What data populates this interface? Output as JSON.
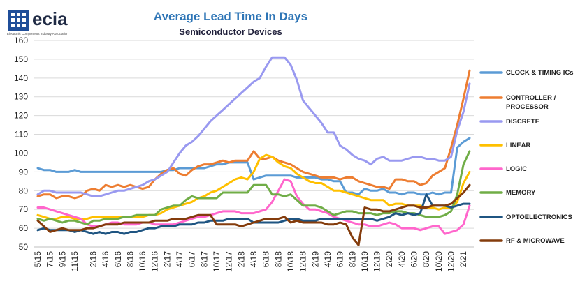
{
  "logo": {
    "text": "ecia",
    "tagline": "Electronic Components Industry Association",
    "icon": "ecia-logo-icon"
  },
  "chart_data": {
    "type": "line",
    "title": "Average Lead Time In Days",
    "subtitle": "Semiconductor Devices",
    "xlabel": "",
    "ylabel": "",
    "ylim": [
      50,
      160
    ],
    "yticks": [
      50,
      60,
      70,
      80,
      90,
      100,
      110,
      120,
      130,
      140,
      150,
      160
    ],
    "grid": true,
    "legend": "right",
    "x": [
      "5\\15",
      "6\\15",
      "7\\15",
      "8\\15",
      "9\\15",
      "10\\15",
      "11\\15",
      "12\\15",
      "1\\16",
      "2\\16",
      "3\\16",
      "4\\16",
      "5\\16",
      "6\\16",
      "7\\16",
      "8\\16",
      "9\\16",
      "10\\16",
      "11\\16",
      "12\\16",
      "1\\17",
      "2\\17",
      "3\\17",
      "4\\17",
      "5\\17",
      "6\\17",
      "7\\17",
      "8\\17",
      "9\\17",
      "10\\17",
      "11\\17",
      "12\\17",
      "1\\18",
      "2\\18",
      "3\\18",
      "4\\18",
      "5\\18",
      "6\\18",
      "7\\18",
      "8\\18",
      "9\\18",
      "10\\18",
      "11\\18",
      "12\\18",
      "1\\19",
      "2\\19",
      "3\\19",
      "4\\19",
      "5\\19",
      "6\\19",
      "7\\19",
      "8\\19",
      "9\\19",
      "10\\19",
      "11\\19",
      "12\\19",
      "1\\20",
      "2\\20",
      "3\\20",
      "4\\20",
      "5\\20",
      "6\\20",
      "7\\20",
      "8\\20",
      "9\\20",
      "10\\20",
      "11\\20",
      "12\\20",
      "1\\21",
      "2\\21",
      "3\\21"
    ],
    "xticks": [
      "5\\15",
      "7\\15",
      "9\\15",
      "11\\15",
      "2\\16",
      "4\\16",
      "6\\16",
      "8\\16",
      "10\\16",
      "12\\16",
      "2\\17",
      "4\\17",
      "6\\17",
      "8\\17",
      "10\\17",
      "12\\17",
      "2\\18",
      "4\\18",
      "6\\18",
      "8\\18",
      "10\\18",
      "12\\18",
      "2\\19",
      "4\\19",
      "6\\19",
      "8\\19",
      "10\\19",
      "12\\19",
      "2\\20",
      "4\\20",
      "6\\20",
      "8\\20",
      "10\\20",
      "12\\20",
      "2\\21"
    ],
    "series": [
      {
        "name": "CLOCK & TIMING ICs",
        "color": "#5b9bd5",
        "values": [
          92,
          91,
          91,
          90,
          90,
          90,
          91,
          90,
          90,
          90,
          90,
          90,
          90,
          90,
          90,
          90,
          90,
          90,
          90,
          90,
          90,
          91,
          91,
          92,
          92,
          92,
          92,
          92,
          93,
          94,
          94,
          95,
          95,
          95,
          95,
          86,
          87,
          88,
          88,
          88,
          88,
          88,
          87,
          87,
          87,
          87,
          86,
          86,
          85,
          85,
          79,
          79,
          78,
          81,
          80,
          80,
          81,
          79,
          79,
          78,
          79,
          79,
          78,
          78,
          79,
          78,
          79,
          79,
          103,
          106,
          108
        ]
      },
      {
        "name": "CONTROLLER / PROCESSOR",
        "color": "#ed7d31",
        "values": [
          77,
          78,
          78,
          76,
          77,
          77,
          76,
          77,
          80,
          81,
          80,
          83,
          82,
          83,
          82,
          83,
          82,
          81,
          82,
          86,
          89,
          91,
          92,
          89,
          88,
          91,
          93,
          94,
          94,
          95,
          96,
          95,
          96,
          96,
          96,
          101,
          97,
          97,
          98,
          96,
          95,
          94,
          92,
          90,
          89,
          88,
          87,
          87,
          87,
          86,
          87,
          87,
          85,
          84,
          83,
          82,
          82,
          81,
          86,
          86,
          85,
          85,
          83,
          84,
          88,
          90,
          92,
          103,
          115,
          129,
          144
        ]
      },
      {
        "name": "DISCRETE",
        "color": "#9999f0",
        "values": [
          78,
          80,
          80,
          79,
          79,
          79,
          79,
          79,
          78,
          77,
          77,
          78,
          79,
          80,
          80,
          81,
          82,
          83,
          85,
          86,
          88,
          90,
          95,
          100,
          104,
          106,
          109,
          113,
          117,
          120,
          123,
          126,
          129,
          132,
          135,
          138,
          140,
          146,
          151,
          151,
          151,
          147,
          139,
          128,
          124,
          120,
          116,
          111,
          111,
          104,
          102,
          99,
          97,
          96,
          94,
          97,
          98,
          96,
          96,
          96,
          97,
          98,
          98,
          97,
          97,
          96,
          96,
          98,
          112,
          122,
          137
        ]
      },
      {
        "name": "LINEAR",
        "color": "#ffc000",
        "values": [
          67,
          66,
          65,
          65,
          66,
          66,
          65,
          65,
          65,
          66,
          66,
          66,
          66,
          66,
          66,
          66,
          66,
          66,
          67,
          67,
          68,
          70,
          71,
          72,
          73,
          74,
          76,
          77,
          79,
          80,
          82,
          84,
          86,
          87,
          86,
          90,
          97,
          99,
          98,
          95,
          93,
          92,
          89,
          87,
          85,
          84,
          84,
          82,
          80,
          80,
          79,
          78,
          77,
          76,
          75,
          75,
          75,
          72,
          73,
          73,
          72,
          72,
          72,
          71,
          71,
          70,
          71,
          71,
          74,
          84,
          90
        ]
      },
      {
        "name": "LOGIC",
        "color": "#ff66cc",
        "values": [
          71,
          71,
          70,
          69,
          68,
          67,
          66,
          65,
          62,
          61,
          61,
          62,
          63,
          63,
          62,
          62,
          62,
          63,
          63,
          62,
          62,
          62,
          62,
          63,
          64,
          65,
          66,
          66,
          67,
          68,
          69,
          69,
          69,
          68,
          68,
          68,
          69,
          70,
          74,
          80,
          86,
          85,
          77,
          73,
          70,
          70,
          69,
          68,
          66,
          65,
          64,
          63,
          62,
          62,
          61,
          61,
          62,
          63,
          62,
          60,
          60,
          60,
          59,
          60,
          61,
          61,
          57,
          58,
          59,
          62,
          72
        ]
      },
      {
        "name": "MEMORY",
        "color": "#70ad47",
        "values": [
          65,
          64,
          65,
          64,
          63,
          64,
          64,
          63,
          62,
          64,
          64,
          65,
          65,
          65,
          66,
          66,
          67,
          67,
          67,
          67,
          70,
          71,
          72,
          72,
          75,
          77,
          76,
          76,
          76,
          76,
          79,
          79,
          79,
          79,
          79,
          83,
          83,
          83,
          78,
          78,
          77,
          78,
          75,
          72,
          72,
          72,
          71,
          69,
          67,
          68,
          69,
          69,
          68,
          68,
          68,
          67,
          68,
          68,
          69,
          69,
          68,
          68,
          67,
          66,
          66,
          66,
          67,
          69,
          78,
          94,
          101
        ]
      },
      {
        "name": "OPTOELECTRONICS",
        "color": "#1f5582",
        "values": [
          59,
          60,
          59,
          59,
          59,
          59,
          58,
          59,
          58,
          57,
          58,
          57,
          58,
          58,
          57,
          58,
          58,
          59,
          60,
          60,
          61,
          61,
          61,
          62,
          62,
          62,
          63,
          63,
          64,
          64,
          64,
          65,
          65,
          65,
          65,
          63,
          63,
          63,
          63,
          63,
          64,
          65,
          65,
          64,
          64,
          64,
          65,
          65,
          65,
          65,
          65,
          65,
          65,
          65,
          65,
          64,
          65,
          66,
          68,
          67,
          68,
          67,
          68,
          78,
          72,
          72,
          72,
          71,
          72,
          73,
          73
        ]
      },
      {
        "name": "RF & MICROWAVE",
        "color": "#843c0c",
        "values": [
          64,
          61,
          58,
          59,
          60,
          59,
          59,
          59,
          60,
          60,
          61,
          62,
          62,
          62,
          63,
          63,
          63,
          63,
          63,
          64,
          64,
          64,
          65,
          65,
          65,
          66,
          67,
          67,
          67,
          62,
          62,
          62,
          62,
          61,
          62,
          63,
          64,
          65,
          65,
          65,
          66,
          63,
          64,
          63,
          63,
          63,
          63,
          62,
          62,
          63,
          62,
          55,
          51,
          71,
          70,
          70,
          69,
          69,
          70,
          71,
          72,
          72,
          71,
          71,
          72,
          72,
          72,
          73,
          76,
          79,
          83
        ]
      }
    ]
  }
}
